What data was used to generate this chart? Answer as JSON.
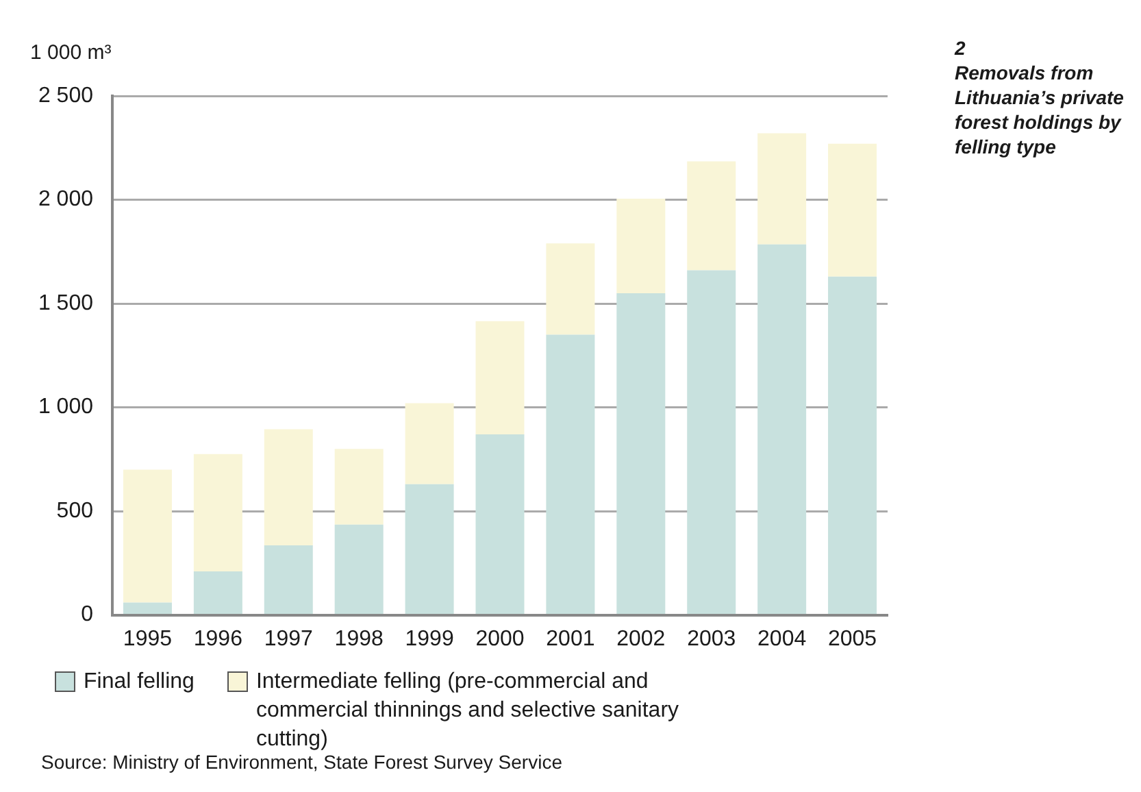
{
  "chart_data": {
    "type": "bar",
    "title": "Removals from Lithuania’s private forest holdings by felling type",
    "ylabel": "1 000 m³",
    "annotations": [
      "2",
      "Source: Ministry of Environment, State Forest Survey Service"
    ],
    "categories": [
      "1995",
      "1996",
      "1997",
      "1998",
      "1999",
      "2000",
      "2001",
      "2002",
      "2003",
      "2004",
      "2005"
    ],
    "stacked": true,
    "series": [
      {
        "name": "Final felling",
        "color": "#c8e1de",
        "values": [
          60,
          210,
          335,
          435,
          630,
          870,
          1350,
          1550,
          1660,
          1785,
          1630
        ]
      },
      {
        "name": "Intermediate felling (pre-commercial and commercial thinnings and selective sanitary cutting)",
        "color": "#f9f5d7",
        "values": [
          640,
          565,
          560,
          365,
          390,
          545,
          440,
          455,
          525,
          535,
          640
        ]
      }
    ],
    "ylim": [
      0,
      2500
    ],
    "yticks": [
      0,
      500,
      {
        "value": 1000,
        "label": "1 000"
      },
      {
        "value": 1500,
        "label": "1 500"
      },
      {
        "value": 2000,
        "label": "2 000"
      },
      {
        "value": 2500,
        "label": "2 500"
      }
    ],
    "grid": "y",
    "legend": "bottom"
  }
}
